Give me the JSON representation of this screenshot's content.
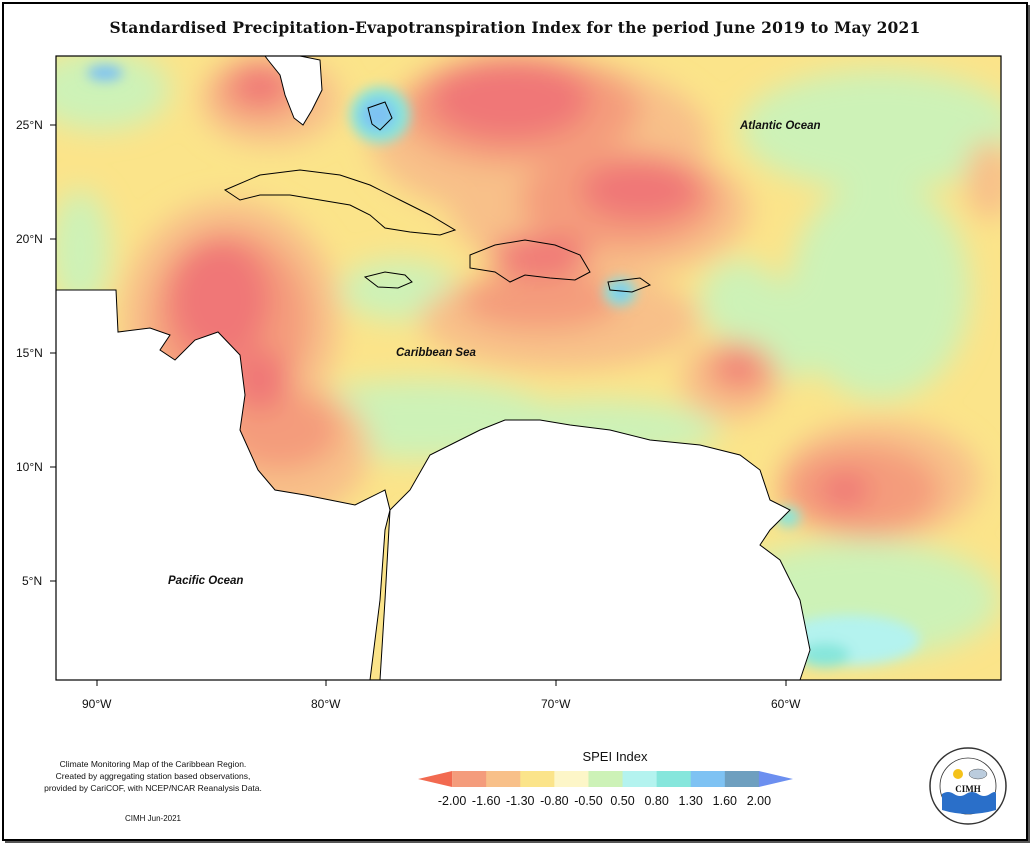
{
  "title": "Standardised Precipitation-Evapotranspiration Index for the period June 2019 to May 2021",
  "map": {
    "lat_labels": [
      "25°N",
      "20°N",
      "15°N",
      "10°N",
      "5°N"
    ],
    "lon_labels": [
      "90°W",
      "80°W",
      "70°W",
      "60°W"
    ],
    "ocean_labels": {
      "atlantic": "Atlantic Ocean",
      "caribbean": "Caribbean Sea",
      "pacific": "Pacific Ocean"
    }
  },
  "legend": {
    "title": "SPEI Index",
    "ticks": [
      "-2.00",
      "-1.60",
      "-1.30",
      "-0.80",
      "-0.50",
      "0.50",
      "0.80",
      "1.30",
      "1.60",
      "2.00"
    ],
    "colors": [
      "#f26a50",
      "#f49c7c",
      "#f8c089",
      "#fbe48a",
      "#fdf6c8",
      "#cdf2b7",
      "#b4f3ef",
      "#86e6dc",
      "#7ec2f3",
      "#6e9fbf",
      "#6c8ff0"
    ]
  },
  "credit": {
    "lines": [
      "Climate Monitoring Map of the Caribbean Region.",
      "Created by aggregating station based observations,",
      "provided by CariCOF, with NCEP/NCAR Reanalysis Data."
    ],
    "date": "CIMH Jun-2021"
  },
  "logo": {
    "abbr": "CIMH"
  }
}
